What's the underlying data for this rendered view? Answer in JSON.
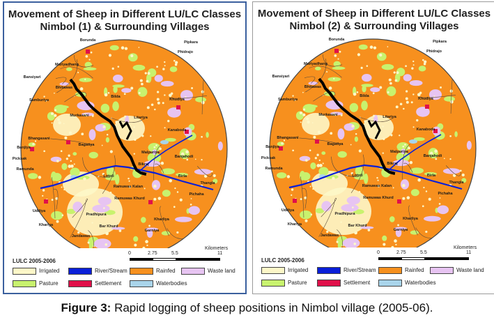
{
  "maps": [
    {
      "title_line1": "Movement of Sheep in Different LU/LC Classes",
      "title_line2": "Nimbol (1) & Surrounding Villages",
      "villages": [
        "Borunda",
        "Pipkara",
        "Phidrajo",
        "Mariyadhang",
        "Bansiyari",
        "Bhitawas",
        "Samburiya",
        "Bilda",
        "Khudiya",
        "Murkasani",
        "Litariya",
        "Bhangasani",
        "Bagatiya",
        "Kanaboda",
        "Banjiya",
        "Malpuriya",
        "Banjahodi",
        "Bikraj",
        "Picksak",
        "Lototi",
        "Ramunda",
        "Birla",
        "Thangla",
        "Ramuwas Kalan",
        "Uddiya",
        "Ramuwas Khurd",
        "Khariya",
        "Pradhipura",
        "Bar Khurd",
        "Jandawas",
        "Kharliya",
        "Garniya",
        "Pichaha"
      ],
      "legend_title": "LULC 2005-2006",
      "scale_ticks": [
        "0",
        "2.75",
        "5.5",
        "11"
      ],
      "scale_units": "Kilometers"
    },
    {
      "title_line1": "Movement of Sheep in Different LU/LC Classes",
      "title_line2": "Nimbol (2) & Surrounding Villages",
      "villages": [
        "Borunda",
        "Pipkara",
        "Phidrajo",
        "Mariyadhang",
        "Bansiyari",
        "Bhitawas",
        "Samburiya",
        "Bilda",
        "Khudiya",
        "Murkasani",
        "Litariya",
        "Bhangasani",
        "Bagatiya",
        "Kanaboda",
        "Banjiya",
        "Malpuriya",
        "Banjahodi",
        "Bikraj",
        "Picksak",
        "Lototi",
        "Ramunda",
        "Birla",
        "Thangla",
        "Ramuwas Kalan",
        "Uddiya",
        "Ramuwas Khurd",
        "Khariya",
        "Pradhipura",
        "Bar Khurd",
        "Jandawas",
        "Kharliya",
        "Garniya",
        "Pichaha"
      ],
      "legend_title": "LULC 2005-2006",
      "scale_ticks": [
        "0",
        "2.75",
        "5.5",
        "11"
      ],
      "scale_units": "Kilometers"
    }
  ],
  "legend": [
    {
      "label": "Irrigated",
      "color": "#fdf7c8"
    },
    {
      "label": "River/Stream",
      "color": "#0a1fd8"
    },
    {
      "label": "Rainfed",
      "color": "#f7901e"
    },
    {
      "label": "Waste land",
      "color": "#e7c4f2"
    },
    {
      "label": "Pasture",
      "color": "#c8f26e"
    },
    {
      "label": "Settlement",
      "color": "#e0104a"
    },
    {
      "label": "Waterbodies",
      "color": "#a9d4ea"
    }
  ],
  "caption": {
    "label": "Figure 3:",
    "text": " Rapid logging of sheep positions in Nimbol village (2005-06)."
  }
}
